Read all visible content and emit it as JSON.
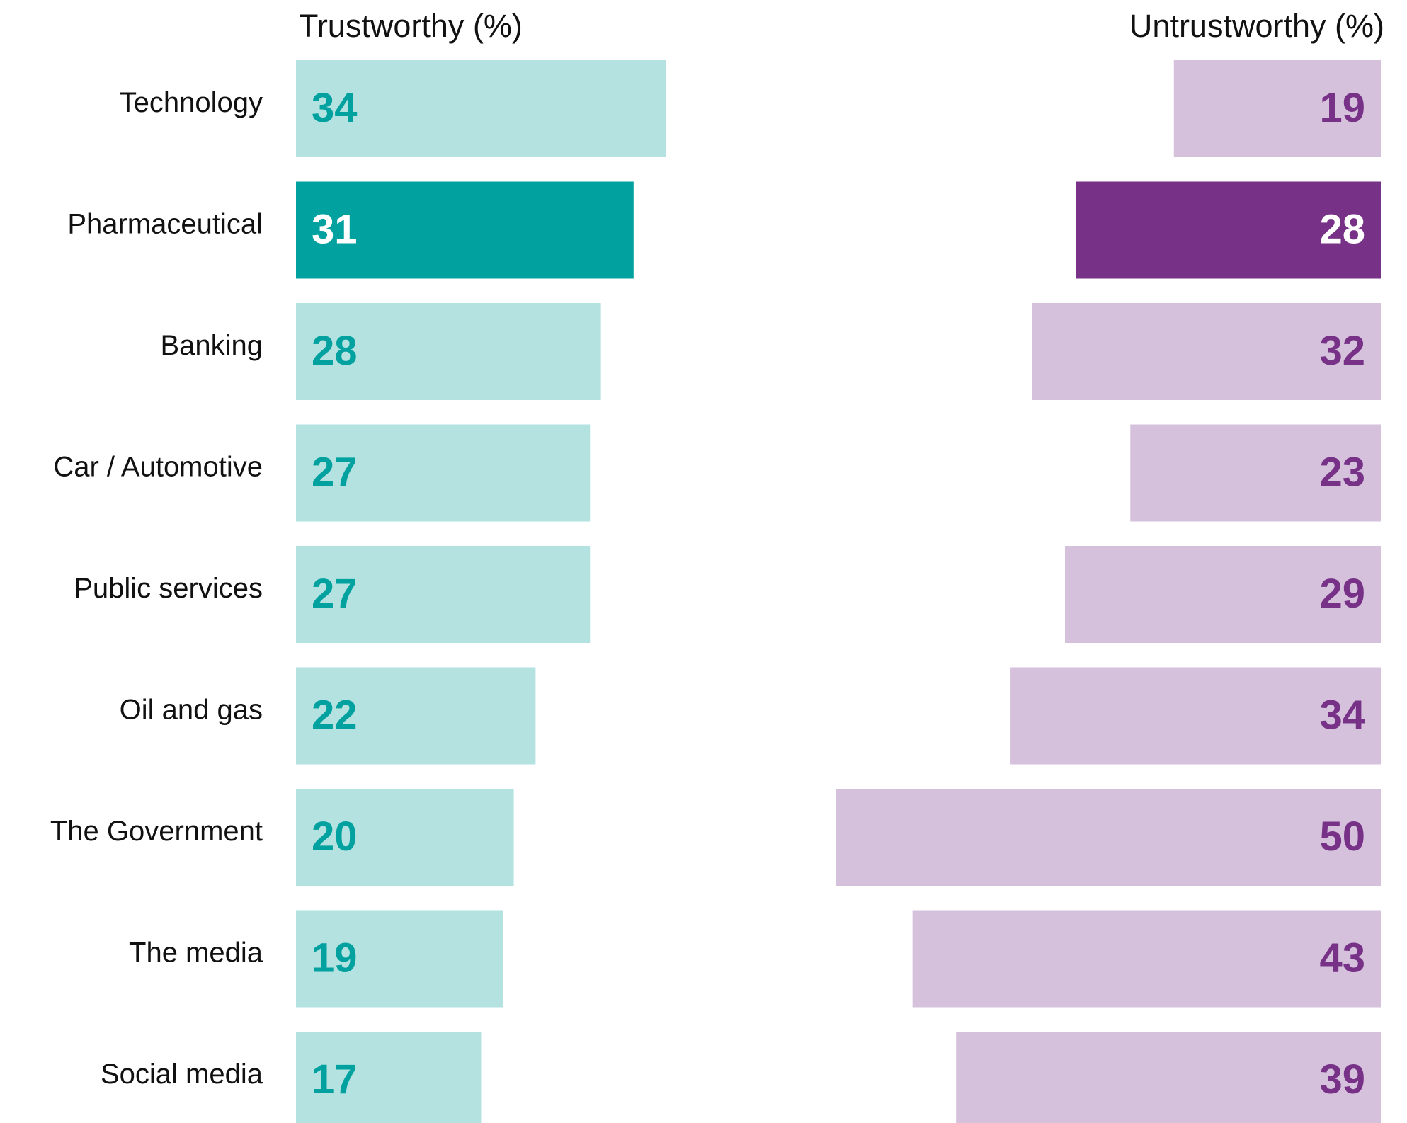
{
  "chart_data": {
    "type": "bar",
    "categories": [
      "Technology",
      "Pharmaceutical",
      "Banking",
      "Car / Automotive",
      "Public services",
      "Oil and gas",
      "The Government",
      "The media",
      "Social media"
    ],
    "series": [
      {
        "name": "Trustworthy (%)",
        "align": "left",
        "colors": [
          "#b3e2e1",
          "#00a19f",
          "#b3e2e1",
          "#b3e2e1",
          "#b3e2e1",
          "#b3e2e1",
          "#b3e2e1",
          "#b3e2e1",
          "#b3e2e1"
        ],
        "label_colors": [
          "#00a19f",
          "#ffffff",
          "#00a19f",
          "#00a19f",
          "#00a19f",
          "#00a19f",
          "#00a19f",
          "#00a19f",
          "#00a19f"
        ],
        "values": [
          34,
          31,
          28,
          27,
          27,
          22,
          20,
          19,
          17
        ]
      },
      {
        "name": "Untrustworthy (%)",
        "align": "right",
        "colors": [
          "#d6c1dc",
          "#773288",
          "#d6c1dc",
          "#d6c1dc",
          "#d6c1dc",
          "#d6c1dc",
          "#d6c1dc",
          "#d6c1dc",
          "#d6c1dc"
        ],
        "label_colors": [
          "#773288",
          "#ffffff",
          "#773288",
          "#773288",
          "#773288",
          "#773288",
          "#773288",
          "#773288",
          "#773288"
        ],
        "values": [
          19,
          28,
          32,
          23,
          29,
          34,
          50,
          43,
          39
        ]
      }
    ]
  }
}
